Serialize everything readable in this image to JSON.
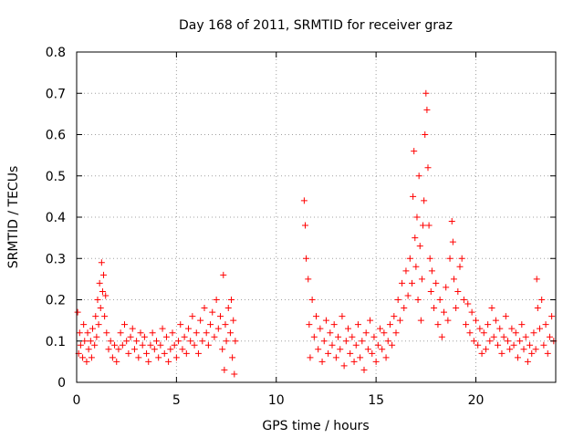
{
  "chart_data": {
    "type": "scatter",
    "title": "Day 168 of 2011, SRMTID for receiver graz",
    "xlabel": "GPS time / hours",
    "ylabel": "SRMTID / TECUs",
    "xlim": [
      0,
      24
    ],
    "ylim": [
      0,
      0.8
    ],
    "xticks": [
      0,
      5,
      10,
      15,
      20
    ],
    "xtick_labels": [
      "0",
      "5",
      "10",
      "15",
      "20"
    ],
    "yticks": [
      0,
      0.1,
      0.2,
      0.3,
      0.4,
      0.5,
      0.6,
      0.7,
      0.8
    ],
    "ytick_labels": [
      "0",
      "0.1",
      "0.2",
      "0.3",
      "0.4",
      "0.5",
      "0.6",
      "0.7",
      "0.8"
    ],
    "grid": true,
    "marker": "+",
    "color": "#ff0000",
    "series": [
      {
        "name": "SRMTID",
        "points": [
          [
            0.05,
            0.17
          ],
          [
            0.1,
            0.07
          ],
          [
            0.15,
            0.12
          ],
          [
            0.2,
            0.09
          ],
          [
            0.3,
            0.06
          ],
          [
            0.35,
            0.14
          ],
          [
            0.4,
            0.1
          ],
          [
            0.5,
            0.05
          ],
          [
            0.55,
            0.12
          ],
          [
            0.6,
            0.08
          ],
          [
            0.7,
            0.1
          ],
          [
            0.75,
            0.06
          ],
          [
            0.8,
            0.13
          ],
          [
            0.9,
            0.09
          ],
          [
            0.95,
            0.16
          ],
          [
            1.0,
            0.11
          ],
          [
            1.05,
            0.2
          ],
          [
            1.1,
            0.14
          ],
          [
            1.15,
            0.24
          ],
          [
            1.2,
            0.18
          ],
          [
            1.25,
            0.29
          ],
          [
            1.3,
            0.22
          ],
          [
            1.35,
            0.26
          ],
          [
            1.4,
            0.16
          ],
          [
            1.45,
            0.21
          ],
          [
            1.5,
            0.12
          ],
          [
            1.6,
            0.08
          ],
          [
            1.7,
            0.1
          ],
          [
            1.8,
            0.06
          ],
          [
            1.9,
            0.09
          ],
          [
            2.0,
            0.05
          ],
          [
            2.1,
            0.08
          ],
          [
            2.2,
            0.12
          ],
          [
            2.3,
            0.09
          ],
          [
            2.4,
            0.14
          ],
          [
            2.5,
            0.1
          ],
          [
            2.6,
            0.07
          ],
          [
            2.7,
            0.11
          ],
          [
            2.8,
            0.13
          ],
          [
            2.9,
            0.08
          ],
          [
            3.0,
            0.1
          ],
          [
            3.1,
            0.06
          ],
          [
            3.2,
            0.12
          ],
          [
            3.3,
            0.09
          ],
          [
            3.4,
            0.11
          ],
          [
            3.5,
            0.07
          ],
          [
            3.6,
            0.05
          ],
          [
            3.7,
            0.09
          ],
          [
            3.8,
            0.12
          ],
          [
            3.9,
            0.08
          ],
          [
            4.0,
            0.1
          ],
          [
            4.1,
            0.06
          ],
          [
            4.2,
            0.09
          ],
          [
            4.3,
            0.13
          ],
          [
            4.4,
            0.07
          ],
          [
            4.5,
            0.11
          ],
          [
            4.6,
            0.05
          ],
          [
            4.7,
            0.08
          ],
          [
            4.8,
            0.12
          ],
          [
            4.9,
            0.09
          ],
          [
            5.0,
            0.06
          ],
          [
            5.1,
            0.1
          ],
          [
            5.2,
            0.14
          ],
          [
            5.3,
            0.08
          ],
          [
            5.4,
            0.11
          ],
          [
            5.5,
            0.07
          ],
          [
            5.6,
            0.13
          ],
          [
            5.7,
            0.1
          ],
          [
            5.8,
            0.16
          ],
          [
            5.9,
            0.09
          ],
          [
            6.0,
            0.12
          ],
          [
            6.1,
            0.07
          ],
          [
            6.2,
            0.15
          ],
          [
            6.3,
            0.1
          ],
          [
            6.4,
            0.18
          ],
          [
            6.5,
            0.12
          ],
          [
            6.6,
            0.09
          ],
          [
            6.7,
            0.14
          ],
          [
            6.8,
            0.17
          ],
          [
            6.9,
            0.11
          ],
          [
            7.0,
            0.2
          ],
          [
            7.1,
            0.13
          ],
          [
            7.2,
            0.16
          ],
          [
            7.3,
            0.08
          ],
          [
            7.35,
            0.26
          ],
          [
            7.4,
            0.03
          ],
          [
            7.45,
            0.14
          ],
          [
            7.5,
            0.1
          ],
          [
            7.6,
            0.18
          ],
          [
            7.7,
            0.12
          ],
          [
            7.75,
            0.2
          ],
          [
            7.8,
            0.06
          ],
          [
            7.85,
            0.15
          ],
          [
            7.9,
            0.02
          ],
          [
            7.95,
            0.1
          ],
          [
            11.4,
            0.44
          ],
          [
            11.45,
            0.38
          ],
          [
            11.5,
            0.3
          ],
          [
            11.6,
            0.25
          ],
          [
            11.65,
            0.14
          ],
          [
            11.7,
            0.06
          ],
          [
            11.8,
            0.2
          ],
          [
            11.9,
            0.11
          ],
          [
            12.0,
            0.16
          ],
          [
            12.1,
            0.08
          ],
          [
            12.2,
            0.13
          ],
          [
            12.3,
            0.05
          ],
          [
            12.4,
            0.1
          ],
          [
            12.5,
            0.15
          ],
          [
            12.6,
            0.07
          ],
          [
            12.7,
            0.12
          ],
          [
            12.8,
            0.09
          ],
          [
            12.9,
            0.14
          ],
          [
            13.0,
            0.06
          ],
          [
            13.1,
            0.11
          ],
          [
            13.2,
            0.08
          ],
          [
            13.3,
            0.16
          ],
          [
            13.4,
            0.04
          ],
          [
            13.5,
            0.1
          ],
          [
            13.6,
            0.13
          ],
          [
            13.7,
            0.07
          ],
          [
            13.8,
            0.11
          ],
          [
            13.9,
            0.05
          ],
          [
            14.0,
            0.09
          ],
          [
            14.1,
            0.14
          ],
          [
            14.2,
            0.06
          ],
          [
            14.3,
            0.1
          ],
          [
            14.4,
            0.03
          ],
          [
            14.5,
            0.12
          ],
          [
            14.6,
            0.08
          ],
          [
            14.7,
            0.15
          ],
          [
            14.8,
            0.07
          ],
          [
            14.9,
            0.11
          ],
          [
            15.0,
            0.05
          ],
          [
            15.1,
            0.09
          ],
          [
            15.2,
            0.13
          ],
          [
            15.3,
            0.08
          ],
          [
            15.4,
            0.12
          ],
          [
            15.5,
            0.06
          ],
          [
            15.6,
            0.1
          ],
          [
            15.7,
            0.14
          ],
          [
            15.8,
            0.09
          ],
          [
            15.9,
            0.16
          ],
          [
            16.0,
            0.12
          ],
          [
            16.1,
            0.2
          ],
          [
            16.2,
            0.15
          ],
          [
            16.3,
            0.24
          ],
          [
            16.4,
            0.18
          ],
          [
            16.5,
            0.27
          ],
          [
            16.6,
            0.21
          ],
          [
            16.7,
            0.3
          ],
          [
            16.8,
            0.24
          ],
          [
            16.85,
            0.45
          ],
          [
            16.9,
            0.56
          ],
          [
            16.95,
            0.35
          ],
          [
            17.0,
            0.28
          ],
          [
            17.05,
            0.4
          ],
          [
            17.1,
            0.2
          ],
          [
            17.15,
            0.5
          ],
          [
            17.2,
            0.33
          ],
          [
            17.25,
            0.15
          ],
          [
            17.3,
            0.25
          ],
          [
            17.35,
            0.38
          ],
          [
            17.4,
            0.44
          ],
          [
            17.45,
            0.6
          ],
          [
            17.5,
            0.7
          ],
          [
            17.55,
            0.66
          ],
          [
            17.6,
            0.52
          ],
          [
            17.65,
            0.38
          ],
          [
            17.7,
            0.3
          ],
          [
            17.75,
            0.22
          ],
          [
            17.8,
            0.27
          ],
          [
            17.9,
            0.18
          ],
          [
            18.0,
            0.24
          ],
          [
            18.1,
            0.14
          ],
          [
            18.2,
            0.2
          ],
          [
            18.3,
            0.11
          ],
          [
            18.4,
            0.17
          ],
          [
            18.5,
            0.23
          ],
          [
            18.6,
            0.15
          ],
          [
            18.7,
            0.3
          ],
          [
            18.8,
            0.39
          ],
          [
            18.85,
            0.34
          ],
          [
            18.9,
            0.25
          ],
          [
            19.0,
            0.18
          ],
          [
            19.1,
            0.22
          ],
          [
            19.2,
            0.28
          ],
          [
            19.3,
            0.3
          ],
          [
            19.4,
            0.2
          ],
          [
            19.5,
            0.14
          ],
          [
            19.6,
            0.19
          ],
          [
            19.7,
            0.12
          ],
          [
            19.8,
            0.17
          ],
          [
            19.9,
            0.1
          ],
          [
            20.0,
            0.15
          ],
          [
            20.1,
            0.09
          ],
          [
            20.2,
            0.13
          ],
          [
            20.3,
            0.07
          ],
          [
            20.4,
            0.12
          ],
          [
            20.5,
            0.08
          ],
          [
            20.6,
            0.14
          ],
          [
            20.7,
            0.1
          ],
          [
            20.8,
            0.18
          ],
          [
            20.9,
            0.11
          ],
          [
            21.0,
            0.15
          ],
          [
            21.1,
            0.09
          ],
          [
            21.2,
            0.13
          ],
          [
            21.3,
            0.07
          ],
          [
            21.4,
            0.11
          ],
          [
            21.5,
            0.16
          ],
          [
            21.6,
            0.1
          ],
          [
            21.7,
            0.08
          ],
          [
            21.8,
            0.13
          ],
          [
            21.9,
            0.09
          ],
          [
            22.0,
            0.12
          ],
          [
            22.1,
            0.06
          ],
          [
            22.2,
            0.1
          ],
          [
            22.3,
            0.14
          ],
          [
            22.4,
            0.08
          ],
          [
            22.5,
            0.11
          ],
          [
            22.6,
            0.05
          ],
          [
            22.7,
            0.09
          ],
          [
            22.8,
            0.07
          ],
          [
            22.9,
            0.12
          ],
          [
            23.0,
            0.08
          ],
          [
            23.05,
            0.25
          ],
          [
            23.1,
            0.18
          ],
          [
            23.2,
            0.13
          ],
          [
            23.3,
            0.2
          ],
          [
            23.4,
            0.09
          ],
          [
            23.5,
            0.14
          ],
          [
            23.6,
            0.07
          ],
          [
            23.7,
            0.11
          ],
          [
            23.8,
            0.16
          ],
          [
            23.9,
            0.1
          ]
        ]
      }
    ]
  }
}
